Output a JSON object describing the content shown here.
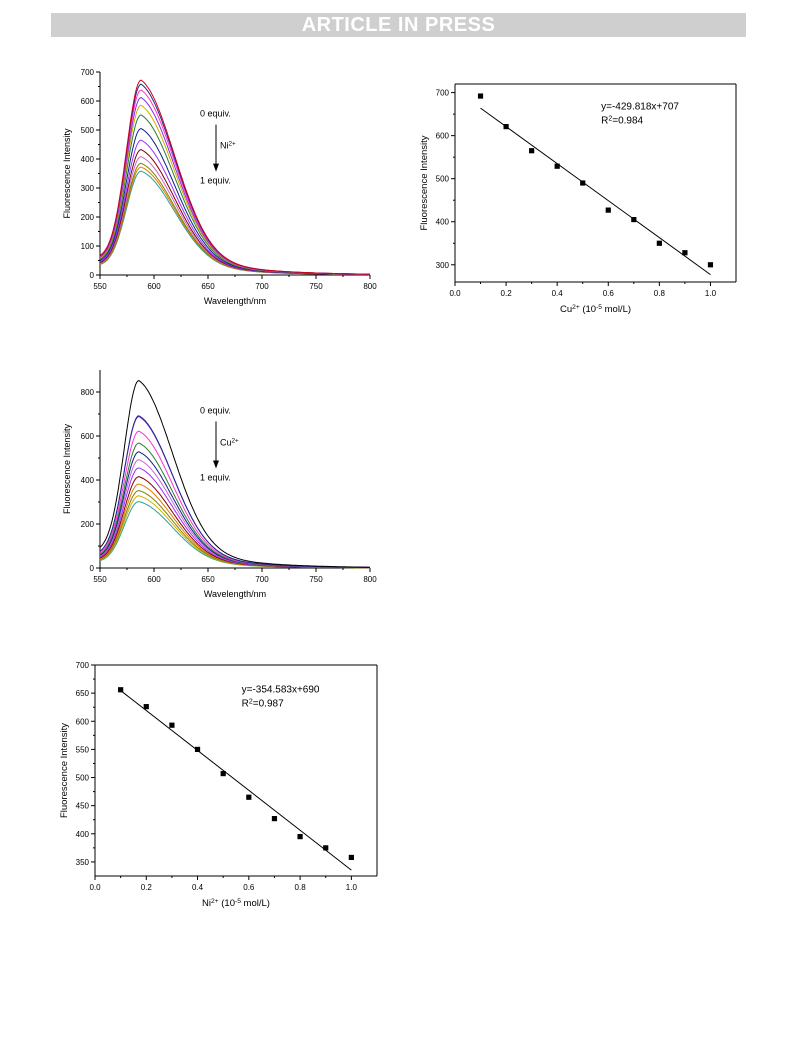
{
  "header": {
    "banner": "ARTICLE IN PRESS"
  },
  "chart_data": [
    {
      "id": "spectra-ni",
      "type": "line",
      "xlabel": "Wavelength/nm",
      "ylabel": "Fluorescence Intensity",
      "xlim": [
        550,
        800
      ],
      "ylim": [
        0,
        700
      ],
      "xticks": [
        550,
        600,
        650,
        700,
        750,
        800
      ],
      "yticks": [
        0,
        100,
        200,
        300,
        400,
        500,
        600,
        700
      ],
      "peak_x": 588,
      "start_ratio": 0.1,
      "annotations": {
        "top": "0 equiv.",
        "ion": "Ni",
        "ion_sup": "2+",
        "bottom": "1 equiv."
      },
      "series": [
        {
          "peak": 672,
          "color": "#d0021b"
        },
        {
          "peak": 658,
          "color": "#1f2a8c"
        },
        {
          "peak": 638,
          "color": "#ff33cc"
        },
        {
          "peak": 612,
          "color": "#8a2be2"
        },
        {
          "peak": 585,
          "color": "#d0b000"
        },
        {
          "peak": 552,
          "color": "#2e7d32"
        },
        {
          "peak": 505,
          "color": "#0b1f8a"
        },
        {
          "peak": 465,
          "color": "#9b30ff"
        },
        {
          "peak": 432,
          "color": "#800000"
        },
        {
          "peak": 408,
          "color": "#cc66cc"
        },
        {
          "peak": 385,
          "color": "#808000"
        },
        {
          "peak": 372,
          "color": "#e07a00"
        },
        {
          "peak": 358,
          "color": "#2aa198"
        }
      ]
    },
    {
      "id": "fit-cu",
      "type": "scatter",
      "xlabel": "Cu",
      "xlabel_sup": "2+",
      "xlabel_rest": " (10",
      "xlabel_exp": "-5",
      "xlabel_unit": " mol/L)",
      "ylabel": "Fluorescence Intensity",
      "xlim": [
        0.0,
        1.1
      ],
      "ylim": [
        260,
        720
      ],
      "xticks": [
        0.0,
        0.2,
        0.4,
        0.6,
        0.8,
        1.0
      ],
      "yticks": [
        300,
        400,
        500,
        600,
        700
      ],
      "points": [
        {
          "x": 0.1,
          "y": 692
        },
        {
          "x": 0.2,
          "y": 621
        },
        {
          "x": 0.3,
          "y": 565
        },
        {
          "x": 0.4,
          "y": 529
        },
        {
          "x": 0.5,
          "y": 490
        },
        {
          "x": 0.6,
          "y": 427
        },
        {
          "x": 0.7,
          "y": 405
        },
        {
          "x": 0.8,
          "y": 350
        },
        {
          "x": 0.9,
          "y": 328
        },
        {
          "x": 1.0,
          "y": 300
        }
      ],
      "fit": {
        "slope": -429.818,
        "intercept": 707,
        "x_from": 0.1,
        "x_to": 1.0
      },
      "equation": "y=-429.818x+707",
      "r2_label": "R",
      "r2_sup": "2",
      "r2_value": "=0.984"
    },
    {
      "id": "spectra-cu",
      "type": "line",
      "xlabel": "Wavelength/nm",
      "ylabel": "Fluorescence Intensity",
      "xlim": [
        550,
        800
      ],
      "ylim": [
        0,
        900
      ],
      "xticks": [
        550,
        600,
        650,
        700,
        750,
        800
      ],
      "yticks": [
        0,
        200,
        400,
        600,
        800
      ],
      "peak_x": 586,
      "start_ratio": 0.11,
      "annotations": {
        "top": "0 equiv.",
        "ion": "Cu",
        "ion_sup": "2+",
        "bottom": "1 equiv."
      },
      "series": [
        {
          "peak": 852,
          "color": "#000000"
        },
        {
          "peak": 692,
          "color": "#1f2a8c"
        },
        {
          "peak": 688,
          "color": "#8a2be2"
        },
        {
          "peak": 622,
          "color": "#ff33cc"
        },
        {
          "peak": 568,
          "color": "#2e7d32"
        },
        {
          "peak": 528,
          "color": "#0b1f8a"
        },
        {
          "peak": 492,
          "color": "#cc66cc"
        },
        {
          "peak": 455,
          "color": "#9b30ff"
        },
        {
          "peak": 415,
          "color": "#800000"
        },
        {
          "peak": 382,
          "color": "#e07a00"
        },
        {
          "peak": 352,
          "color": "#808000"
        },
        {
          "peak": 328,
          "color": "#d0b000"
        },
        {
          "peak": 302,
          "color": "#2aa198"
        }
      ]
    },
    {
      "id": "fit-ni",
      "type": "scatter",
      "xlabel": "Ni",
      "xlabel_sup": "2+",
      "xlabel_rest": " (10",
      "xlabel_exp": "-5",
      "xlabel_unit": " mol/L)",
      "ylabel": "Fluorescence Intensity",
      "xlim": [
        0.0,
        1.1
      ],
      "ylim": [
        325,
        700
      ],
      "xticks": [
        0.0,
        0.2,
        0.4,
        0.6,
        0.8,
        1.0
      ],
      "yticks": [
        350,
        400,
        450,
        500,
        550,
        600,
        650,
        700
      ],
      "points": [
        {
          "x": 0.1,
          "y": 656
        },
        {
          "x": 0.2,
          "y": 626
        },
        {
          "x": 0.3,
          "y": 593
        },
        {
          "x": 0.4,
          "y": 550
        },
        {
          "x": 0.5,
          "y": 507
        },
        {
          "x": 0.6,
          "y": 465
        },
        {
          "x": 0.7,
          "y": 427
        },
        {
          "x": 0.8,
          "y": 395
        },
        {
          "x": 0.9,
          "y": 375
        },
        {
          "x": 1.0,
          "y": 358
        }
      ],
      "fit": {
        "slope": -354.583,
        "intercept": 690,
        "x_from": 0.1,
        "x_to": 1.0
      },
      "equation": "y=-354.583x+690",
      "r2_label": "R",
      "r2_sup": "2",
      "r2_value": "=0.987"
    }
  ]
}
